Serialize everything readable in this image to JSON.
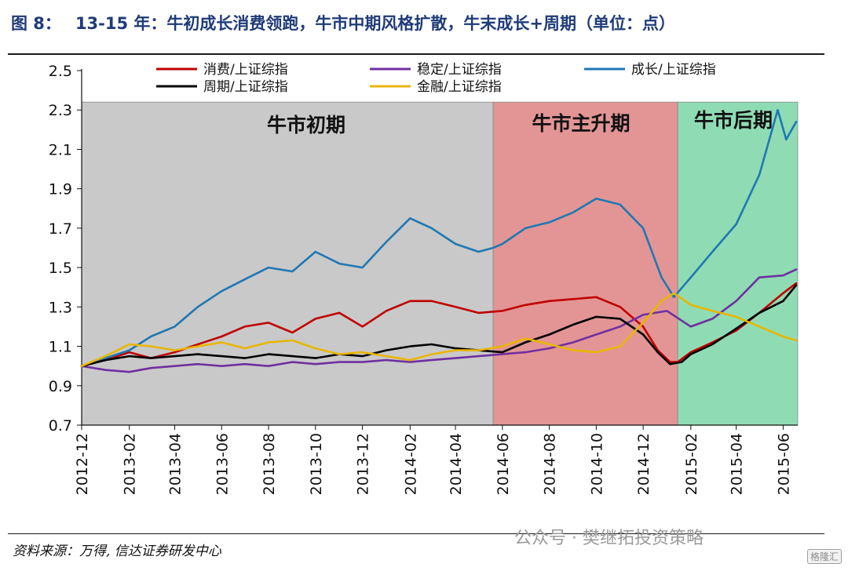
{
  "title": {
    "figure_label": "图 8：",
    "text": "13-15 年：牛初成长消费领跑，牛市中期风格扩散，牛末成长+周期（单位：点）"
  },
  "source": "资料来源：万得, 信达证券研发中心",
  "watermark": "公众号 · 樊继拓投资策略",
  "badge": "格隆汇",
  "chart_data": {
    "type": "line",
    "ylim": [
      0.7,
      2.5
    ],
    "yticks": [
      "0.7",
      "0.9",
      "1.1",
      "1.3",
      "1.5",
      "1.7",
      "1.9",
      "2.1",
      "2.3",
      "2.5"
    ],
    "xlim": [
      "2012-12",
      "2015-06-20"
    ],
    "xticks": [
      "2012-12",
      "2013-02",
      "2013-04",
      "2013-06",
      "2013-08",
      "2013-10",
      "2013-12",
      "2014-02",
      "2014-04",
      "2014-06",
      "2014-08",
      "2014-10",
      "2014-12",
      "2015-02",
      "2015-04",
      "2015-06"
    ],
    "phases": [
      {
        "label": "牛市初期",
        "start": "2012-12",
        "end": "2014-05-20",
        "color": "#c9c9c9"
      },
      {
        "label": "牛市主升期",
        "start": "2014-05-20",
        "end": "2015-01-15",
        "color": "#e39595"
      },
      {
        "label": "牛市后期",
        "start": "2015-01-15",
        "end": "2015-06-20",
        "color": "#8fdcb4"
      }
    ],
    "series": [
      {
        "name": "消费/上证综指",
        "color": "#c00000",
        "data": [
          [
            "2012-12-01",
            1.0
          ],
          [
            "2013-01-01",
            1.03
          ],
          [
            "2013-02-01",
            1.07
          ],
          [
            "2013-03-01",
            1.04
          ],
          [
            "2013-04-01",
            1.07
          ],
          [
            "2013-05-01",
            1.11
          ],
          [
            "2013-06-01",
            1.15
          ],
          [
            "2013-07-01",
            1.2
          ],
          [
            "2013-08-01",
            1.22
          ],
          [
            "2013-09-01",
            1.17
          ],
          [
            "2013-10-01",
            1.24
          ],
          [
            "2013-11-01",
            1.27
          ],
          [
            "2013-12-01",
            1.2
          ],
          [
            "2014-01-01",
            1.28
          ],
          [
            "2014-02-01",
            1.33
          ],
          [
            "2014-03-01",
            1.33
          ],
          [
            "2014-04-01",
            1.3
          ],
          [
            "2014-05-01",
            1.27
          ],
          [
            "2014-06-01",
            1.28
          ],
          [
            "2014-07-01",
            1.31
          ],
          [
            "2014-08-01",
            1.33
          ],
          [
            "2014-09-01",
            1.34
          ],
          [
            "2014-10-01",
            1.35
          ],
          [
            "2014-11-01",
            1.3
          ],
          [
            "2014-12-01",
            1.2
          ],
          [
            "2014-12-20",
            1.08
          ],
          [
            "2015-01-05",
            1.02
          ],
          [
            "2015-01-15",
            1.02
          ],
          [
            "2015-02-01",
            1.07
          ],
          [
            "2015-03-01",
            1.12
          ],
          [
            "2015-04-01",
            1.18
          ],
          [
            "2015-05-01",
            1.27
          ],
          [
            "2015-06-01",
            1.37
          ],
          [
            "2015-06-18",
            1.42
          ]
        ]
      },
      {
        "name": "稳定/上证综指",
        "color": "#7030a0",
        "data": [
          [
            "2012-12-01",
            1.0
          ],
          [
            "2013-01-01",
            0.98
          ],
          [
            "2013-02-01",
            0.97
          ],
          [
            "2013-03-01",
            0.99
          ],
          [
            "2013-04-01",
            1.0
          ],
          [
            "2013-05-01",
            1.01
          ],
          [
            "2013-06-01",
            1.0
          ],
          [
            "2013-07-01",
            1.01
          ],
          [
            "2013-08-01",
            1.0
          ],
          [
            "2013-09-01",
            1.02
          ],
          [
            "2013-10-01",
            1.01
          ],
          [
            "2013-11-01",
            1.02
          ],
          [
            "2013-12-01",
            1.02
          ],
          [
            "2014-01-01",
            1.03
          ],
          [
            "2014-02-01",
            1.02
          ],
          [
            "2014-03-01",
            1.03
          ],
          [
            "2014-04-01",
            1.04
          ],
          [
            "2014-05-01",
            1.05
          ],
          [
            "2014-06-01",
            1.06
          ],
          [
            "2014-07-01",
            1.07
          ],
          [
            "2014-08-01",
            1.09
          ],
          [
            "2014-09-01",
            1.12
          ],
          [
            "2014-10-01",
            1.16
          ],
          [
            "2014-11-01",
            1.2
          ],
          [
            "2014-12-01",
            1.26
          ],
          [
            "2015-01-01",
            1.28
          ],
          [
            "2015-02-01",
            1.2
          ],
          [
            "2015-03-01",
            1.24
          ],
          [
            "2015-04-01",
            1.33
          ],
          [
            "2015-05-01",
            1.45
          ],
          [
            "2015-06-01",
            1.46
          ],
          [
            "2015-06-18",
            1.49
          ]
        ]
      },
      {
        "name": "成长/上证综指",
        "color": "#1f78b4",
        "data": [
          [
            "2012-12-01",
            1.0
          ],
          [
            "2013-01-01",
            1.04
          ],
          [
            "2013-02-01",
            1.08
          ],
          [
            "2013-03-01",
            1.15
          ],
          [
            "2013-04-01",
            1.2
          ],
          [
            "2013-05-01",
            1.3
          ],
          [
            "2013-06-01",
            1.38
          ],
          [
            "2013-07-01",
            1.44
          ],
          [
            "2013-08-01",
            1.5
          ],
          [
            "2013-09-01",
            1.48
          ],
          [
            "2013-10-01",
            1.58
          ],
          [
            "2013-11-01",
            1.52
          ],
          [
            "2013-12-01",
            1.5
          ],
          [
            "2014-01-01",
            1.63
          ],
          [
            "2014-02-01",
            1.75
          ],
          [
            "2014-03-01",
            1.7
          ],
          [
            "2014-04-01",
            1.62
          ],
          [
            "2014-05-01",
            1.58
          ],
          [
            "2014-05-20",
            1.6
          ],
          [
            "2014-06-01",
            1.62
          ],
          [
            "2014-07-01",
            1.7
          ],
          [
            "2014-08-01",
            1.73
          ],
          [
            "2014-09-01",
            1.78
          ],
          [
            "2014-10-01",
            1.85
          ],
          [
            "2014-11-01",
            1.82
          ],
          [
            "2014-12-01",
            1.7
          ],
          [
            "2014-12-25",
            1.45
          ],
          [
            "2015-01-10",
            1.35
          ],
          [
            "2015-02-01",
            1.45
          ],
          [
            "2015-03-01",
            1.58
          ],
          [
            "2015-04-01",
            1.72
          ],
          [
            "2015-05-01",
            1.97
          ],
          [
            "2015-05-25",
            2.3
          ],
          [
            "2015-06-05",
            2.15
          ],
          [
            "2015-06-18",
            2.24
          ]
        ]
      },
      {
        "name": "周期/上证综指",
        "color": "#000000",
        "data": [
          [
            "2012-12-01",
            1.0
          ],
          [
            "2013-01-01",
            1.03
          ],
          [
            "2013-02-01",
            1.05
          ],
          [
            "2013-03-01",
            1.04
          ],
          [
            "2013-04-01",
            1.05
          ],
          [
            "2013-05-01",
            1.06
          ],
          [
            "2013-06-01",
            1.05
          ],
          [
            "2013-07-01",
            1.04
          ],
          [
            "2013-08-01",
            1.06
          ],
          [
            "2013-09-01",
            1.05
          ],
          [
            "2013-10-01",
            1.04
          ],
          [
            "2013-11-01",
            1.06
          ],
          [
            "2013-12-01",
            1.05
          ],
          [
            "2014-01-01",
            1.08
          ],
          [
            "2014-02-01",
            1.1
          ],
          [
            "2014-03-01",
            1.11
          ],
          [
            "2014-04-01",
            1.09
          ],
          [
            "2014-05-01",
            1.08
          ],
          [
            "2014-06-01",
            1.07
          ],
          [
            "2014-07-01",
            1.12
          ],
          [
            "2014-08-01",
            1.16
          ],
          [
            "2014-09-01",
            1.21
          ],
          [
            "2014-10-01",
            1.25
          ],
          [
            "2014-11-01",
            1.24
          ],
          [
            "2014-12-01",
            1.16
          ],
          [
            "2014-12-20",
            1.07
          ],
          [
            "2015-01-05",
            1.01
          ],
          [
            "2015-01-20",
            1.02
          ],
          [
            "2015-02-01",
            1.06
          ],
          [
            "2015-03-01",
            1.11
          ],
          [
            "2015-04-01",
            1.19
          ],
          [
            "2015-05-01",
            1.27
          ],
          [
            "2015-06-01",
            1.33
          ],
          [
            "2015-06-18",
            1.41
          ]
        ]
      },
      {
        "name": "金融/上证综指",
        "color": "#e8b600",
        "data": [
          [
            "2012-12-01",
            1.0
          ],
          [
            "2013-01-01",
            1.05
          ],
          [
            "2013-02-01",
            1.11
          ],
          [
            "2013-03-01",
            1.1
          ],
          [
            "2013-04-01",
            1.08
          ],
          [
            "2013-05-01",
            1.1
          ],
          [
            "2013-06-01",
            1.12
          ],
          [
            "2013-07-01",
            1.09
          ],
          [
            "2013-08-01",
            1.12
          ],
          [
            "2013-09-01",
            1.13
          ],
          [
            "2013-10-01",
            1.09
          ],
          [
            "2013-11-01",
            1.06
          ],
          [
            "2013-12-01",
            1.07
          ],
          [
            "2014-01-01",
            1.05
          ],
          [
            "2014-02-01",
            1.03
          ],
          [
            "2014-03-01",
            1.06
          ],
          [
            "2014-04-01",
            1.08
          ],
          [
            "2014-05-01",
            1.08
          ],
          [
            "2014-06-01",
            1.1
          ],
          [
            "2014-07-01",
            1.14
          ],
          [
            "2014-08-01",
            1.11
          ],
          [
            "2014-09-01",
            1.08
          ],
          [
            "2014-10-01",
            1.07
          ],
          [
            "2014-11-01",
            1.1
          ],
          [
            "2014-12-01",
            1.22
          ],
          [
            "2014-12-25",
            1.33
          ],
          [
            "2015-01-10",
            1.37
          ],
          [
            "2015-02-01",
            1.31
          ],
          [
            "2015-03-01",
            1.28
          ],
          [
            "2015-04-01",
            1.25
          ],
          [
            "2015-05-01",
            1.2
          ],
          [
            "2015-06-01",
            1.15
          ],
          [
            "2015-06-18",
            1.13
          ]
        ]
      }
    ],
    "legend": {
      "placement": "top-center",
      "columns": 3
    }
  }
}
